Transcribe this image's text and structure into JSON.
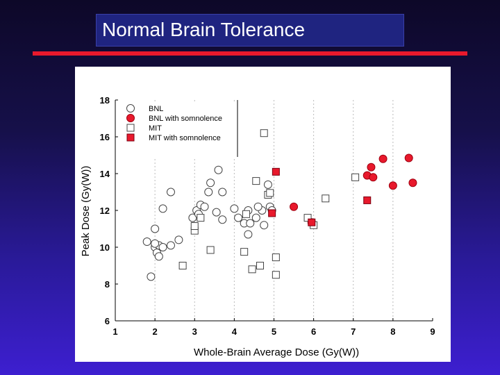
{
  "slide": {
    "title": "Normal Brain Tolerance"
  },
  "colors": {
    "title_box": "#1f2480",
    "rule": "#e8192c",
    "marker_red": "#e8192c",
    "marker_open": "#ffffff",
    "marker_stroke": "#444444"
  },
  "chart_data": {
    "type": "scatter",
    "xlabel": "Whole-Brain Average Dose (Gy(W))",
    "ylabel": "Peak Dose (Gy(W))",
    "xlim": [
      1,
      9
    ],
    "ylim": [
      6,
      18
    ],
    "xticks": [
      1,
      2,
      3,
      4,
      5,
      6,
      7,
      8,
      9
    ],
    "yticks": [
      6,
      8,
      10,
      12,
      14,
      16,
      18
    ],
    "grid": "dashed vertical",
    "legend_position": "top-left",
    "series": [
      {
        "name": "BNL",
        "marker": "circle",
        "filled": false,
        "points": [
          [
            1.9,
            8.4
          ],
          [
            1.8,
            10.3
          ],
          [
            2.0,
            10.0
          ],
          [
            2.1,
            10.1
          ],
          [
            2.05,
            9.7
          ],
          [
            2.1,
            9.5
          ],
          [
            2.0,
            10.2
          ],
          [
            2.2,
            10.0
          ],
          [
            2.4,
            10.1
          ],
          [
            2.6,
            10.4
          ],
          [
            2.0,
            11.0
          ],
          [
            2.2,
            12.1
          ],
          [
            2.4,
            13.0
          ],
          [
            2.95,
            11.6
          ],
          [
            3.05,
            12.0
          ],
          [
            3.1,
            11.8
          ],
          [
            3.15,
            12.3
          ],
          [
            3.25,
            12.2
          ],
          [
            3.35,
            13.0
          ],
          [
            3.4,
            13.5
          ],
          [
            3.6,
            14.2
          ],
          [
            3.7,
            13.0
          ],
          [
            3.55,
            11.9
          ],
          [
            3.7,
            11.5
          ],
          [
            4.0,
            12.1
          ],
          [
            4.1,
            11.6
          ],
          [
            4.25,
            11.3
          ],
          [
            4.35,
            10.7
          ],
          [
            4.4,
            11.3
          ],
          [
            4.35,
            12.0
          ],
          [
            4.55,
            11.6
          ],
          [
            4.7,
            12.0
          ],
          [
            4.75,
            11.2
          ],
          [
            4.85,
            13.4
          ],
          [
            4.9,
            12.2
          ],
          [
            4.95,
            12.0
          ],
          [
            4.6,
            12.2
          ]
        ]
      },
      {
        "name": "BNL with somnolence",
        "marker": "circle",
        "filled": true,
        "points": [
          [
            5.5,
            12.2
          ],
          [
            5.95,
            11.35
          ],
          [
            7.35,
            13.9
          ],
          [
            7.45,
            14.35
          ],
          [
            7.5,
            13.8
          ],
          [
            7.75,
            14.8
          ],
          [
            8.0,
            13.35
          ],
          [
            8.4,
            14.85
          ],
          [
            8.5,
            13.5
          ]
        ]
      },
      {
        "name": "MIT",
        "marker": "square",
        "filled": false,
        "points": [
          [
            2.7,
            9.0
          ],
          [
            3.0,
            10.9
          ],
          [
            3.0,
            11.15
          ],
          [
            3.15,
            11.6
          ],
          [
            3.4,
            9.85
          ],
          [
            4.25,
            9.75
          ],
          [
            4.3,
            11.8
          ],
          [
            4.45,
            8.8
          ],
          [
            4.55,
            13.6
          ],
          [
            4.65,
            9.0
          ],
          [
            4.75,
            16.2
          ],
          [
            4.85,
            12.85
          ],
          [
            4.9,
            12.95
          ],
          [
            5.05,
            9.45
          ],
          [
            5.05,
            8.5
          ],
          [
            5.85,
            11.6
          ],
          [
            6.0,
            11.2
          ],
          [
            6.3,
            12.65
          ],
          [
            7.05,
            13.8
          ]
        ]
      },
      {
        "name": "MIT with somnolence",
        "marker": "square",
        "filled": true,
        "points": [
          [
            5.05,
            14.1
          ],
          [
            4.95,
            11.85
          ],
          [
            5.95,
            11.35
          ],
          [
            7.35,
            12.55
          ]
        ]
      }
    ]
  }
}
